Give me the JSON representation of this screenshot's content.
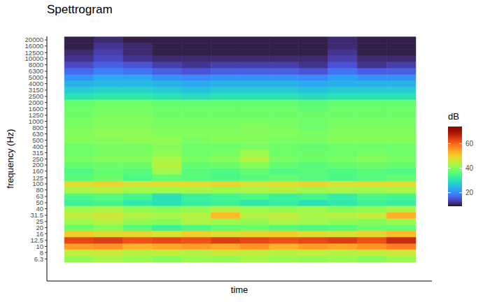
{
  "chart_data": {
    "type": "heatmap",
    "title": "Spettrogram",
    "x_label": "time",
    "y_label": "frequency (Hz)",
    "log": "y",
    "grid": false,
    "tick_labels": "y",
    "x": [
      0.5,
      1.5,
      2.5,
      3.5,
      4.5,
      5.5,
      6.5,
      7.5,
      8.5,
      9.5,
      10.5,
      11.5
    ],
    "xlim": [
      -0.6,
      12.55
    ],
    "y": [
      6.3,
      8,
      10,
      12.5,
      16,
      20,
      25,
      31.5,
      40,
      50,
      63,
      80,
      100,
      125,
      160,
      200,
      250,
      315,
      400,
      500,
      630,
      800,
      1000,
      1250,
      1600,
      2000,
      2500,
      3150,
      4000,
      5000,
      6300,
      8000,
      10000,
      12500,
      16000,
      20000
    ],
    "ylim": [
      2.8,
      22800
    ],
    "yticks": [
      6.3,
      8,
      10,
      12.5,
      16,
      20,
      25,
      31.5,
      40,
      50,
      63,
      80,
      100,
      125,
      160,
      200,
      250,
      315,
      400,
      500,
      630,
      800,
      1000,
      1250,
      1600,
      2000,
      2500,
      3150,
      4000,
      5000,
      6300,
      8000,
      10000,
      12500,
      16000,
      20000
    ],
    "cells": [
      [
        41,
        43,
        42,
        40,
        42,
        41,
        43,
        42,
        41,
        42,
        40,
        42
      ],
      [
        45,
        46,
        44,
        45,
        44,
        46,
        45,
        44,
        45,
        44,
        45,
        46
      ],
      [
        55,
        56,
        53,
        54,
        55,
        54,
        56,
        53,
        55,
        54,
        56,
        58
      ],
      [
        63,
        64,
        62,
        63,
        62,
        64,
        63,
        62,
        63,
        64,
        62,
        66
      ],
      [
        50,
        48,
        49,
        47,
        50,
        48,
        49,
        50,
        48,
        47,
        49,
        52
      ],
      [
        38,
        40,
        36,
        33,
        35,
        37,
        38,
        36,
        35,
        36,
        38,
        37
      ],
      [
        42,
        44,
        41,
        40,
        43,
        42,
        41,
        43,
        42,
        41,
        40,
        42
      ],
      [
        45,
        46,
        44,
        43,
        44,
        52,
        44,
        45,
        43,
        44,
        45,
        53
      ],
      [
        42,
        43,
        41,
        40,
        41,
        44,
        42,
        41,
        42,
        40,
        41,
        43
      ],
      [
        33,
        34,
        31,
        30,
        32,
        33,
        31,
        32,
        30,
        31,
        33,
        32
      ],
      [
        35,
        36,
        34,
        30,
        33,
        34,
        35,
        33,
        34,
        32,
        35,
        34
      ],
      [
        43,
        44,
        42,
        42,
        43,
        42,
        43,
        44,
        42,
        43,
        42,
        43
      ],
      [
        48,
        49,
        47,
        48,
        48,
        49,
        47,
        48,
        49,
        47,
        48,
        48
      ],
      [
        36,
        38,
        35,
        37,
        36,
        35,
        36,
        37,
        36,
        35,
        36,
        37
      ],
      [
        35,
        37,
        36,
        42,
        36,
        35,
        37,
        35,
        36,
        35,
        36,
        35
      ],
      [
        37,
        38,
        38,
        44,
        37,
        38,
        40,
        37,
        36,
        37,
        38,
        37
      ],
      [
        39,
        40,
        40,
        43,
        39,
        40,
        44,
        39,
        38,
        39,
        40,
        39
      ],
      [
        38,
        39,
        39,
        41,
        38,
        39,
        42,
        38,
        38,
        38,
        39,
        38
      ],
      [
        38,
        39,
        39,
        40,
        38,
        38,
        39,
        38,
        37,
        38,
        38,
        38
      ],
      [
        40,
        40,
        41,
        41,
        39,
        40,
        40,
        39,
        39,
        40,
        40,
        40
      ],
      [
        40,
        41,
        41,
        40,
        40,
        40,
        40,
        40,
        39,
        40,
        40,
        40
      ],
      [
        39,
        40,
        40,
        39,
        39,
        39,
        40,
        39,
        38,
        39,
        39,
        39
      ],
      [
        39,
        40,
        40,
        39,
        39,
        39,
        39,
        39,
        38,
        39,
        39,
        39
      ],
      [
        38,
        39,
        39,
        38,
        38,
        38,
        38,
        38,
        38,
        38,
        38,
        38
      ],
      [
        38,
        39,
        39,
        38,
        38,
        38,
        38,
        38,
        37,
        38,
        38,
        38
      ],
      [
        37,
        38,
        38,
        37,
        37,
        37,
        37,
        37,
        36,
        37,
        37,
        37
      ],
      [
        30,
        31,
        31,
        30,
        29,
        30,
        30,
        30,
        29,
        30,
        30,
        30
      ],
      [
        27,
        28,
        28,
        27,
        26,
        27,
        27,
        27,
        26,
        27,
        27,
        27
      ],
      [
        24,
        25,
        25,
        24,
        23,
        24,
        24,
        24,
        23,
        24,
        24,
        24
      ],
      [
        21,
        23,
        23,
        21,
        20,
        21,
        21,
        21,
        20,
        22,
        21,
        21
      ],
      [
        17,
        19,
        18,
        16,
        15,
        16,
        16,
        16,
        15,
        18,
        16,
        16
      ],
      [
        14,
        16,
        15,
        13,
        12,
        13,
        13,
        13,
        12,
        15,
        12,
        13
      ],
      [
        12,
        14,
        12,
        11,
        11,
        11,
        11,
        11,
        11,
        13,
        11,
        11
      ],
      [
        11,
        13,
        11,
        10,
        10,
        10,
        10,
        10,
        10,
        12,
        10,
        10
      ],
      [
        10,
        12,
        11,
        10,
        10,
        10,
        10,
        10,
        10,
        11,
        10,
        10
      ],
      [
        10,
        11,
        10,
        10,
        10,
        10,
        10,
        10,
        10,
        11,
        10,
        10
      ]
    ],
    "colorbar": {
      "title": "dB",
      "range": [
        9,
        74
      ],
      "ticks": [
        20,
        40,
        60
      ]
    }
  }
}
